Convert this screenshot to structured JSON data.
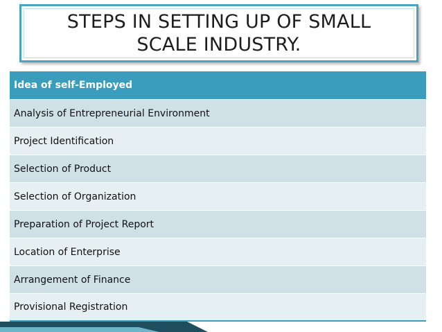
{
  "slide": {
    "title": "STEPS IN SETTING UP OF SMALL SCALE INDUSTRY."
  },
  "table": {
    "header": "Idea of self-Employed",
    "rows": [
      "Analysis of Entrepreneurial Environment",
      "Project Identification",
      "Selection of Product",
      "Selection of Organization",
      "Preparation of Project Report",
      "Location of Enterprise",
      "Arrangement of Finance",
      "Provisional Registration"
    ]
  },
  "colors": {
    "accent": "#3a9dbd",
    "row_odd": "#cfe1e7",
    "row_even": "#e6eff2",
    "decoration": "#1f4e5e"
  }
}
